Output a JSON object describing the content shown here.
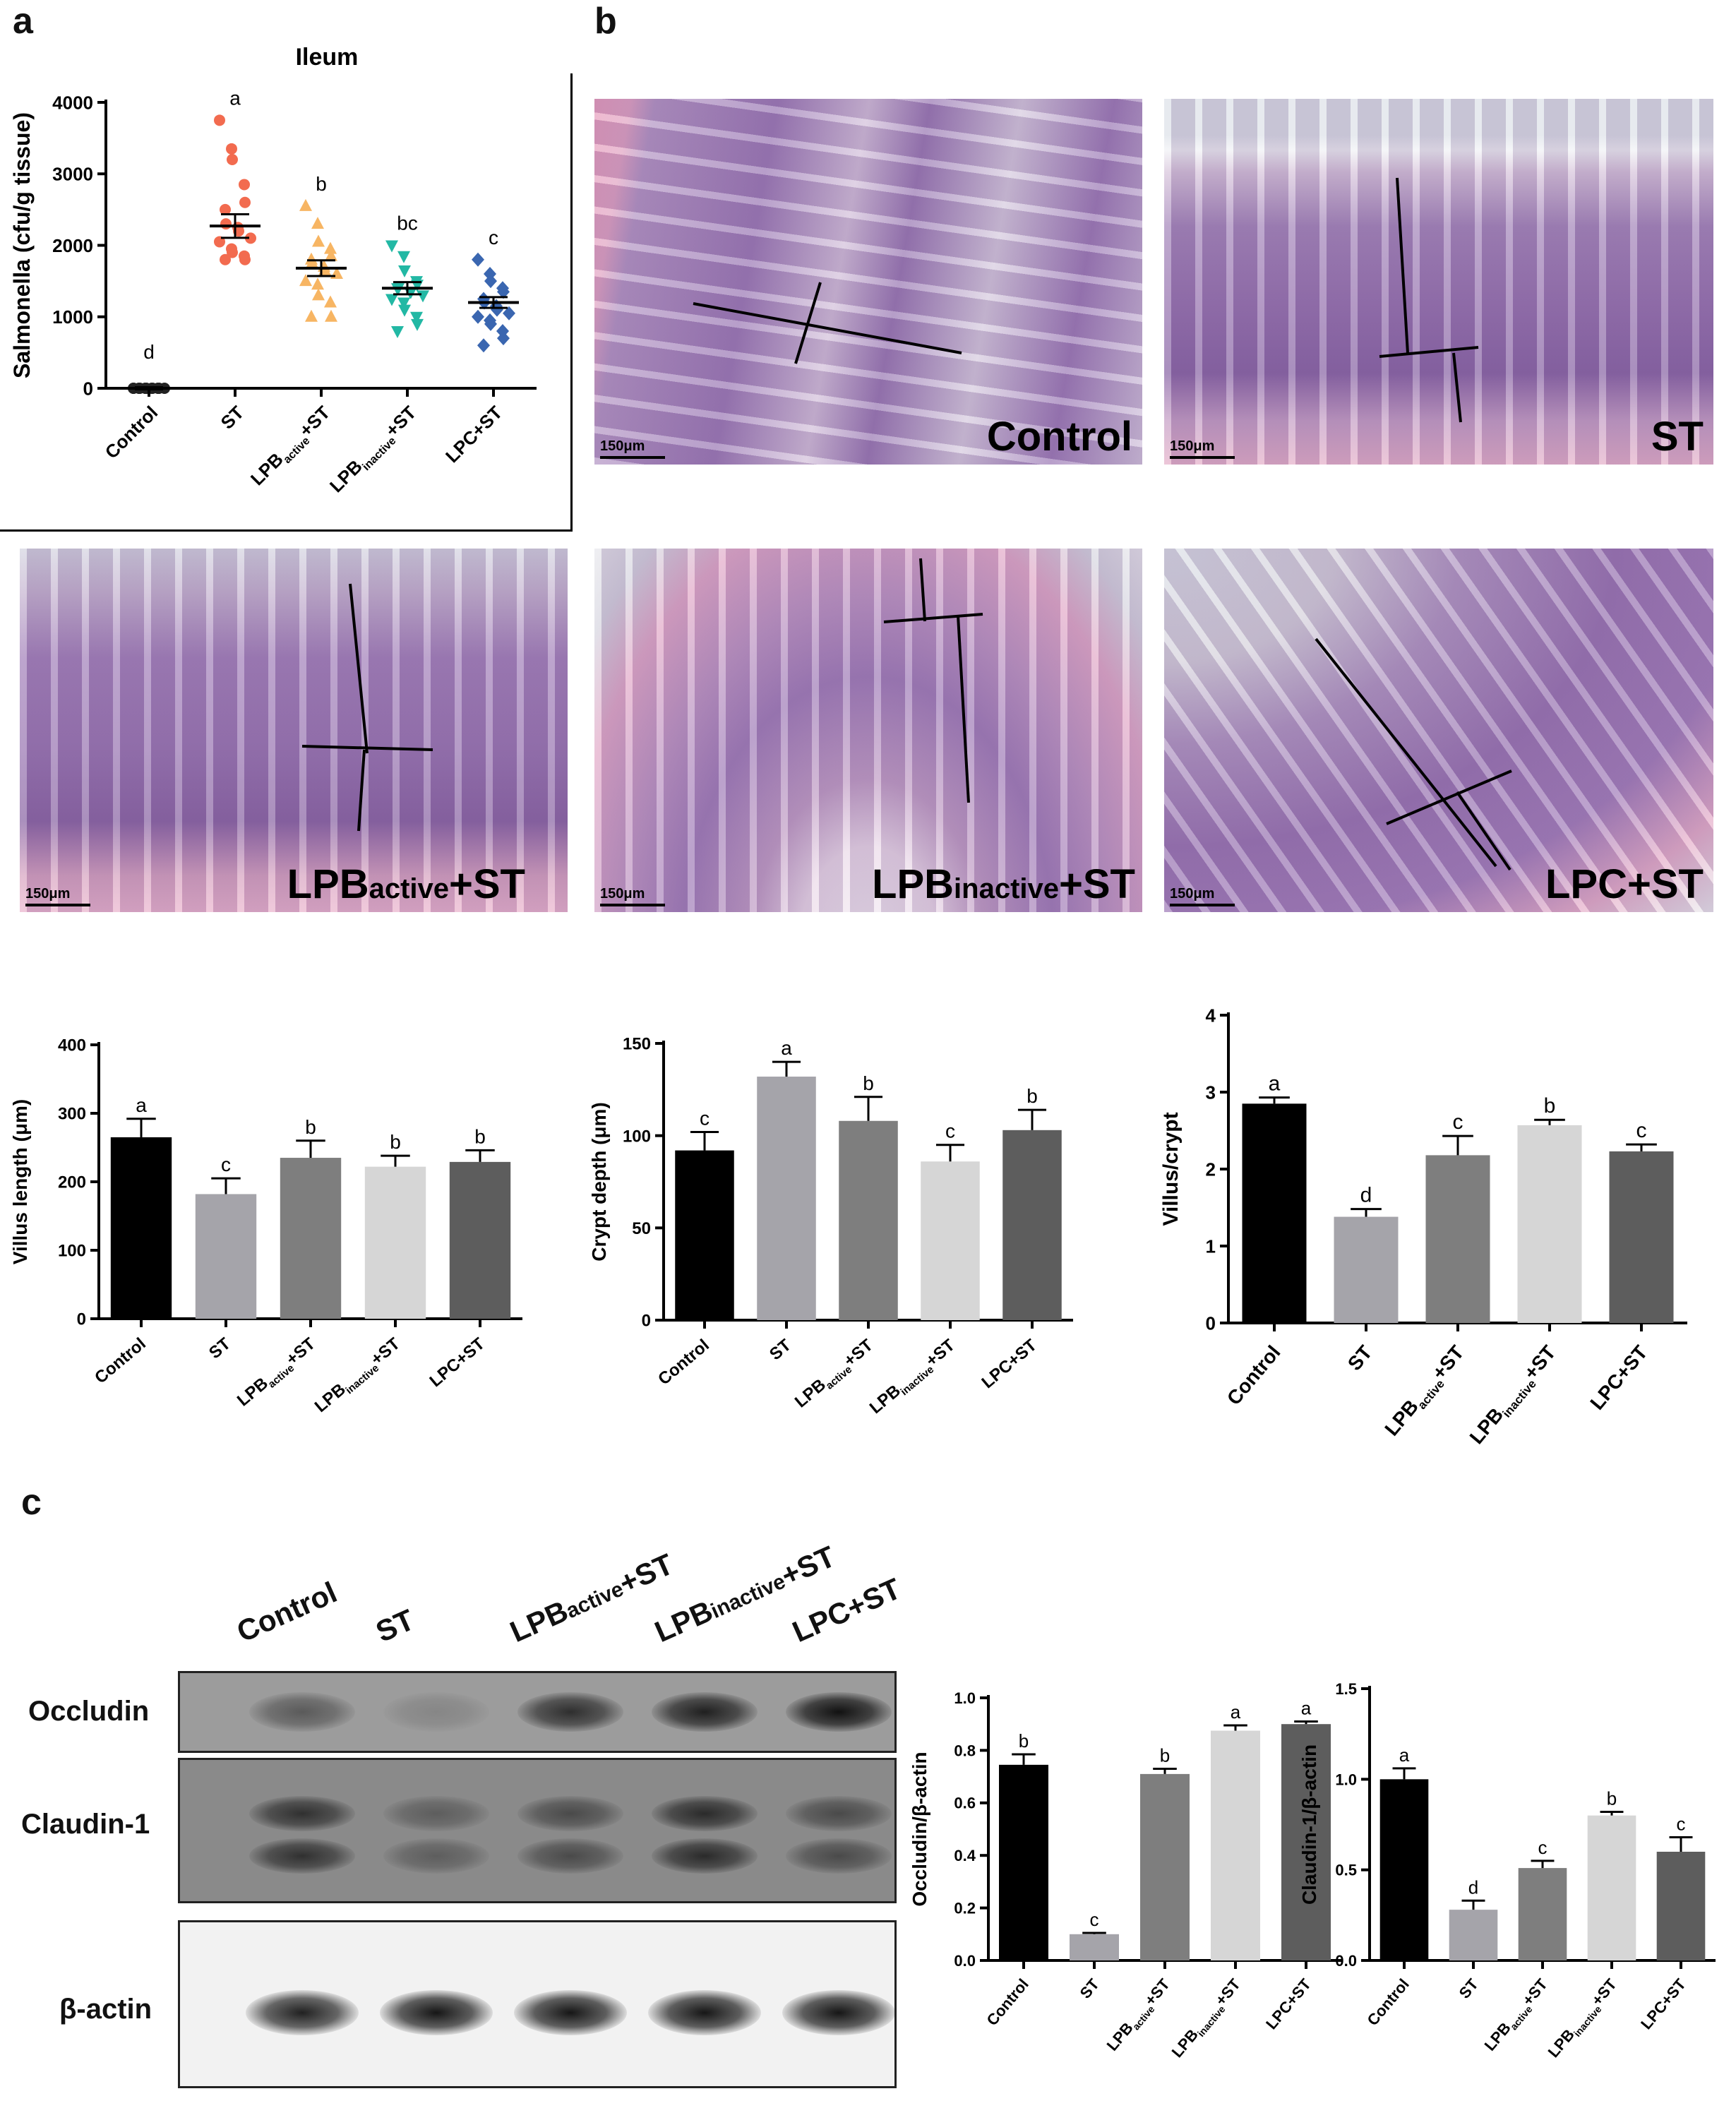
{
  "panel_labels": {
    "a": "a",
    "b": "b",
    "c": "c"
  },
  "histology": {
    "scale_label": "150μm",
    "panels": [
      {
        "id": "control",
        "label_main": "Control",
        "label_sub": "",
        "label_suffix": ""
      },
      {
        "id": "st",
        "label_main": "ST",
        "label_sub": "",
        "label_suffix": ""
      },
      {
        "id": "lpb_active",
        "label_main": "LPB",
        "label_sub": "active",
        "label_suffix": "+ST"
      },
      {
        "id": "lpb_inactive",
        "label_main": "LPB",
        "label_sub": "inactive",
        "label_suffix": "+ST"
      },
      {
        "id": "lpc",
        "label_main": "LPC+ST",
        "label_sub": "",
        "label_suffix": ""
      }
    ]
  },
  "western_blot": {
    "lanes": [
      {
        "main": "Control",
        "sub": "",
        "suffix": ""
      },
      {
        "main": "ST",
        "sub": "",
        "suffix": ""
      },
      {
        "main": "LPB",
        "sub": "active",
        "suffix": "+ST"
      },
      {
        "main": "LPB",
        "sub": "inactive",
        "suffix": "+ST"
      },
      {
        "main": "LPC+ST",
        "sub": "",
        "suffix": ""
      }
    ],
    "rows": [
      "Occludin",
      "Claudin-1",
      "β-actin"
    ],
    "band_intensity": {
      "Occludin": [
        0.45,
        0.15,
        0.75,
        0.85,
        0.95
      ],
      "Claudin-1": [
        0.7,
        0.35,
        0.5,
        0.75,
        0.5
      ],
      "β-actin": [
        0.9,
        0.95,
        0.95,
        0.95,
        0.95
      ]
    }
  },
  "group_labels": [
    {
      "main": "Control",
      "sub": "",
      "suffix": ""
    },
    {
      "main": "ST",
      "sub": "",
      "suffix": ""
    },
    {
      "main": "LPB",
      "sub": "active",
      "suffix": "+ST"
    },
    {
      "main": "LPB",
      "sub": "inactive",
      "suffix": "+ST"
    },
    {
      "main": "LPC+ST",
      "sub": "",
      "suffix": ""
    }
  ],
  "chart_data": [
    {
      "id": "salmonella",
      "type": "scatter",
      "title": "Ileum",
      "ylabel": "Salmonella (cfu/g tissue)",
      "categories": [
        "Control",
        "ST",
        "LPBactive+ST",
        "LPBinactive+ST",
        "LPC+ST"
      ],
      "ylim": [
        0,
        4000
      ],
      "yticks": [
        0,
        1000,
        2000,
        3000,
        4000
      ],
      "colors": [
        "#222222",
        "#f26b4f",
        "#f7b563",
        "#22b8a4",
        "#3a66b0"
      ],
      "markers": [
        "circle",
        "circle",
        "triangle-up",
        "triangle-down",
        "diamond"
      ],
      "points": [
        [
          0,
          0,
          0,
          0,
          0,
          0,
          0,
          0,
          0,
          0,
          0,
          0,
          0,
          0,
          0,
          0
        ],
        [
          3750,
          3350,
          3200,
          2850,
          2600,
          2500,
          2300,
          2250,
          2200,
          2100,
          2050,
          1950,
          1900,
          1850,
          1800,
          1800
        ],
        [
          2550,
          2300,
          2050,
          1950,
          1850,
          1800,
          1750,
          1700,
          1650,
          1600,
          1500,
          1450,
          1300,
          1200,
          1000,
          1000
        ],
        [
          2000,
          1850,
          1650,
          1500,
          1450,
          1400,
          1400,
          1350,
          1350,
          1300,
          1250,
          1200,
          1100,
          1000,
          900,
          800
        ],
        [
          1800,
          1600,
          1500,
          1400,
          1350,
          1250,
          1200,
          1150,
          1100,
          1050,
          1000,
          950,
          900,
          800,
          700,
          600
        ]
      ],
      "means": [
        0,
        2270,
        1680,
        1400,
        1200
      ],
      "sem": [
        15,
        165,
        110,
        85,
        75
      ],
      "letters": [
        "d",
        "a",
        "b",
        "bc",
        "c"
      ]
    },
    {
      "id": "villus_length",
      "type": "bar",
      "ylabel": "Villus length (μm)",
      "categories": [
        "Control",
        "ST",
        "LPBactive+ST",
        "LPBinactive+ST",
        "LPC+ST"
      ],
      "values": [
        265,
        182,
        235,
        222,
        229
      ],
      "errors": [
        27,
        23,
        25,
        16,
        17
      ],
      "letters": [
        "a",
        "c",
        "b",
        "b",
        "b"
      ],
      "ylim": [
        0,
        400
      ],
      "yticks": [
        0,
        100,
        200,
        300,
        400
      ],
      "colors": [
        "#000000",
        "#a5a4aa",
        "#7e7e7e",
        "#d6d6d6",
        "#5d5d5d"
      ]
    },
    {
      "id": "crypt_depth",
      "type": "bar",
      "ylabel": "Crypt depth (μm)",
      "categories": [
        "Control",
        "ST",
        "LPBactive+ST",
        "LPBinactive+ST",
        "LPC+ST"
      ],
      "values": [
        92,
        132,
        108,
        86,
        103
      ],
      "errors": [
        10,
        8,
        13,
        9,
        11
      ],
      "letters": [
        "c",
        "a",
        "b",
        "c",
        "b"
      ],
      "ylim": [
        0,
        150
      ],
      "yticks": [
        0,
        50,
        100,
        150
      ],
      "colors": [
        "#000000",
        "#a5a4aa",
        "#7e7e7e",
        "#d6d6d6",
        "#5d5d5d"
      ]
    },
    {
      "id": "villus_crypt",
      "type": "bar",
      "ylabel": "Villus/crypt",
      "categories": [
        "Control",
        "ST",
        "LPBactive+ST",
        "LPBinactive+ST",
        "LPC+ST"
      ],
      "values": [
        2.85,
        1.38,
        2.18,
        2.57,
        2.23
      ],
      "errors": [
        0.08,
        0.1,
        0.25,
        0.07,
        0.09
      ],
      "letters": [
        "a",
        "d",
        "c",
        "b",
        "c"
      ],
      "ylim": [
        0,
        4
      ],
      "yticks": [
        0,
        1,
        2,
        3,
        4
      ],
      "colors": [
        "#000000",
        "#a5a4aa",
        "#7e7e7e",
        "#d6d6d6",
        "#5d5d5d"
      ]
    },
    {
      "id": "occludin",
      "type": "bar",
      "ylabel": "Occludin/β-actin",
      "categories": [
        "Control",
        "ST",
        "LPBactive+ST",
        "LPBinactive+ST",
        "LPC+ST"
      ],
      "values": [
        0.745,
        0.1,
        0.71,
        0.875,
        0.9
      ],
      "errors": [
        0.04,
        0.005,
        0.02,
        0.02,
        0.01
      ],
      "letters": [
        "b",
        "c",
        "b",
        "a",
        "a"
      ],
      "ylim": [
        0,
        1.0
      ],
      "yticks": [
        0.0,
        0.2,
        0.4,
        0.6,
        0.8,
        1.0
      ],
      "ytick_labels": [
        "0.0",
        "0.2",
        "0.4",
        "0.6",
        "0.8",
        "1.0"
      ],
      "colors": [
        "#000000",
        "#a5a4aa",
        "#7e7e7e",
        "#d6d6d6",
        "#5d5d5d"
      ]
    },
    {
      "id": "claudin",
      "type": "bar",
      "ylabel": "Claudin-1/β-actin",
      "categories": [
        "Control",
        "ST",
        "LPBactive+ST",
        "LPBinactive+ST",
        "LPC+ST"
      ],
      "values": [
        1.0,
        0.28,
        0.51,
        0.8,
        0.6
      ],
      "errors": [
        0.06,
        0.05,
        0.04,
        0.02,
        0.08
      ],
      "letters": [
        "a",
        "d",
        "c",
        "b",
        "c"
      ],
      "ylim": [
        0,
        1.5
      ],
      "yticks": [
        0.0,
        0.5,
        1.0,
        1.5
      ],
      "ytick_labels": [
        "0.0",
        "0.5",
        "1.0",
        "1.5"
      ],
      "colors": [
        "#000000",
        "#a5a4aa",
        "#7e7e7e",
        "#d6d6d6",
        "#5d5d5d"
      ]
    }
  ]
}
